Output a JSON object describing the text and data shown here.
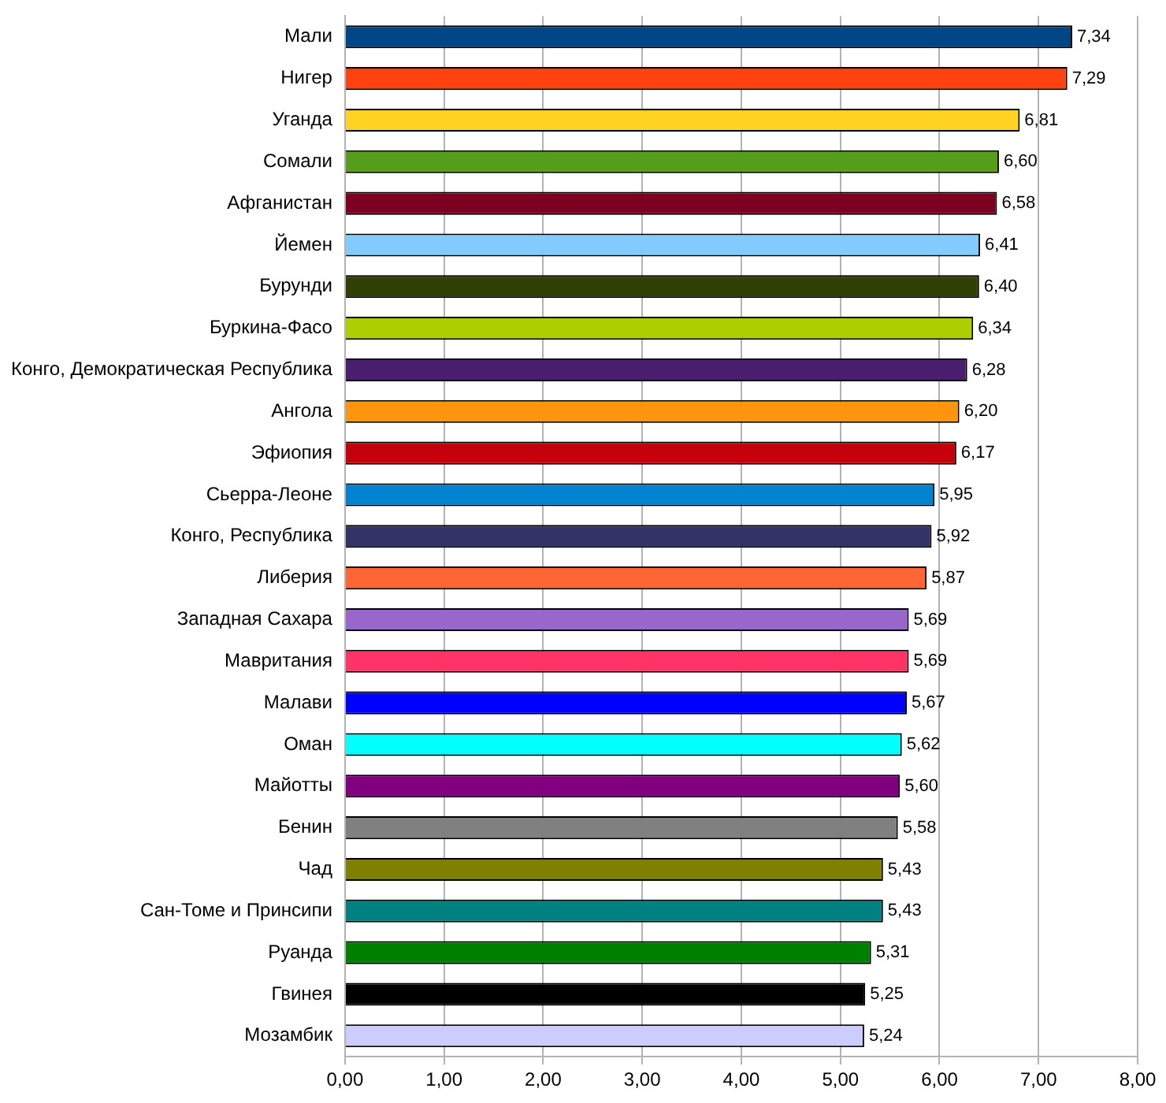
{
  "chart_data": {
    "type": "bar",
    "orientation": "horizontal",
    "grid": "x",
    "categories": [
      "Мали",
      "Нигер",
      "Уганда",
      "Сомали",
      "Афганистан",
      "Йемен",
      "Бурунди",
      "Буркина-Фасо",
      "Конго, Демократическая Республика",
      "Ангола",
      "Эфиопия",
      "Сьерра-Леоне",
      "Конго, Республика",
      "Либерия",
      "Западная Сахара",
      "Мавритания",
      "Малави",
      "Оман",
      "Майотты",
      "Бенин",
      "Чад",
      "Сан-Томе и Принсипи",
      "Руанда",
      "Гвинея",
      "Мозамбик"
    ],
    "values": [
      7.34,
      7.29,
      6.81,
      6.6,
      6.58,
      6.41,
      6.4,
      6.34,
      6.28,
      6.2,
      6.17,
      5.95,
      5.92,
      5.87,
      5.69,
      5.69,
      5.67,
      5.62,
      5.6,
      5.58,
      5.43,
      5.43,
      5.31,
      5.25,
      5.24
    ],
    "value_labels": [
      "7,34",
      "7,29",
      "6,81",
      "6,60",
      "6,58",
      "6,41",
      "6,40",
      "6,34",
      "6,28",
      "6,20",
      "6,17",
      "5,95",
      "5,92",
      "5,87",
      "5,69",
      "5,69",
      "5,67",
      "5,62",
      "5,60",
      "5,58",
      "5,43",
      "5,43",
      "5,31",
      "5,25",
      "5,24"
    ],
    "colors": [
      "#004586",
      "#ff420e",
      "#ffd320",
      "#579d1c",
      "#7e0021",
      "#83caff",
      "#314004",
      "#aecf00",
      "#4b1f6f",
      "#ff950e",
      "#c5000b",
      "#0084d1",
      "#333366",
      "#ff6633",
      "#9966cc",
      "#ff3366",
      "#0000ff",
      "#00ffff",
      "#800080",
      "#808080",
      "#808000",
      "#008080",
      "#008000",
      "#000000",
      "#ccccff"
    ],
    "xlim": [
      0,
      8
    ],
    "xticks": [
      {
        "value": 0,
        "label": "0,00"
      },
      {
        "value": 1,
        "label": "1,00"
      },
      {
        "value": 2,
        "label": "2,00"
      },
      {
        "value": 3,
        "label": "3,00"
      },
      {
        "value": 4,
        "label": "4,00"
      },
      {
        "value": 5,
        "label": "5,00"
      },
      {
        "value": 6,
        "label": "6,00"
      },
      {
        "value": 7,
        "label": "7,00"
      },
      {
        "value": 8,
        "label": "8,00"
      }
    ]
  }
}
